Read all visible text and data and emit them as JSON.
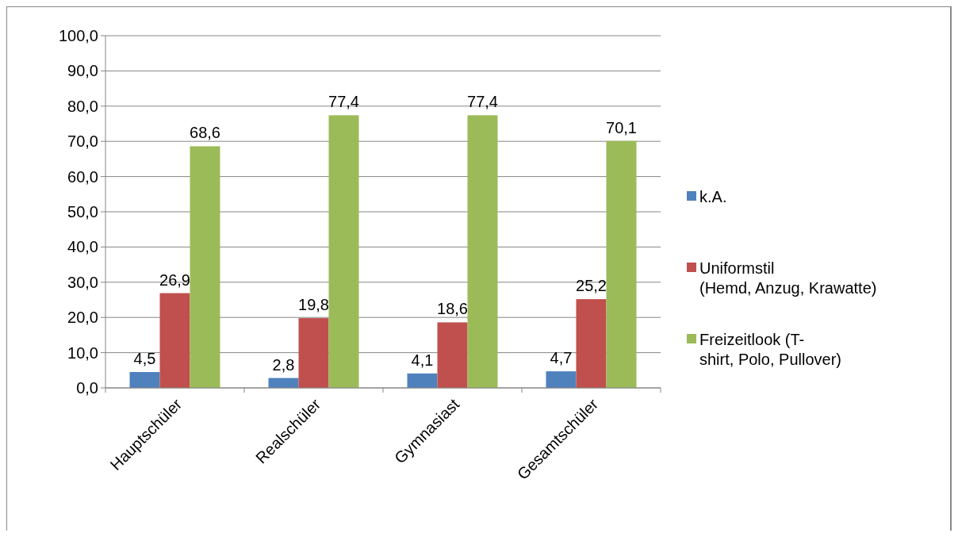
{
  "chart_data": {
    "type": "bar",
    "categories": [
      "Hauptschüler",
      "Realschüler",
      "Gymnasiast",
      "Gesamtschüler"
    ],
    "series": [
      {
        "name": "k.A.",
        "color": "#4f81bd",
        "values": [
          4.5,
          2.8,
          4.1,
          4.7
        ],
        "value_labels": [
          "4,5",
          "2,8",
          "4,1",
          "4,7"
        ]
      },
      {
        "name": "Uniformstil\n(Hemd, Anzug, Krawatte)",
        "color": "#c0504d",
        "values": [
          26.9,
          19.8,
          18.6,
          25.2
        ],
        "value_labels": [
          "26,9",
          "19,8",
          "18,6",
          "25,2"
        ]
      },
      {
        "name": "Freizeitlook (T-\nshirt, Polo, Pullover)",
        "color": "#9bbb59",
        "values": [
          68.6,
          77.4,
          77.4,
          70.1
        ],
        "value_labels": [
          "68,6",
          "77,4",
          "77,4",
          "70,1"
        ]
      }
    ],
    "ylim": [
      0,
      100
    ],
    "yticks": [
      {
        "value": 0,
        "label": "0,0"
      },
      {
        "value": 10,
        "label": "10,0"
      },
      {
        "value": 20,
        "label": "20,0"
      },
      {
        "value": 30,
        "label": "30,0"
      },
      {
        "value": 40,
        "label": "40,0"
      },
      {
        "value": 50,
        "label": "50,0"
      },
      {
        "value": 60,
        "label": "60,0"
      },
      {
        "value": 70,
        "label": "70,0"
      },
      {
        "value": 80,
        "label": "80,0"
      },
      {
        "value": 90,
        "label": "90,0"
      },
      {
        "value": 100,
        "label": "100,0"
      }
    ],
    "grid": "y",
    "legend": "right"
  }
}
